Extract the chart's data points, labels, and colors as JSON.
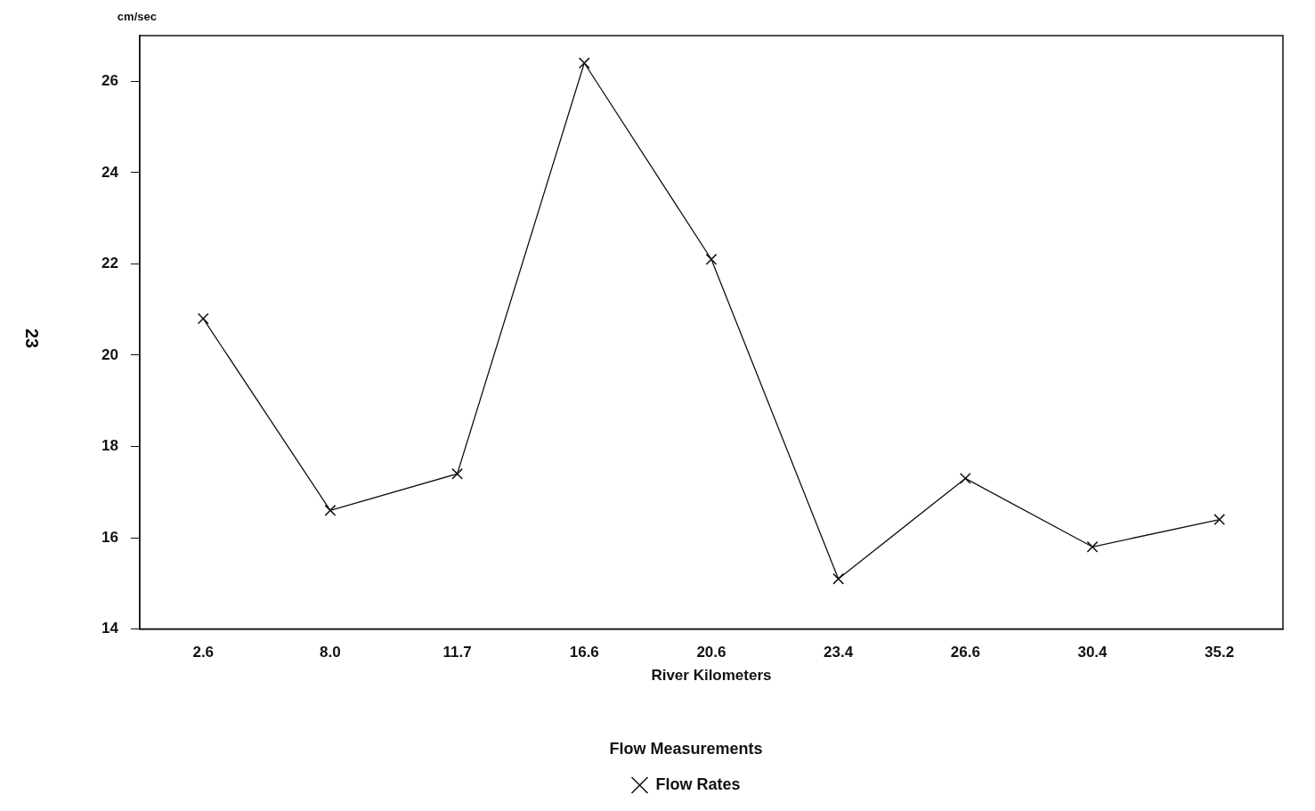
{
  "chart_data": {
    "type": "line",
    "ylabel": "cm/sec",
    "xlabel": "River Kilometers",
    "legend_title": "Flow Measurements",
    "categories": [
      "2.6",
      "8.0",
      "11.7",
      "16.6",
      "20.6",
      "23.4",
      "26.6",
      "30.4",
      "35.2"
    ],
    "series": [
      {
        "name": "Flow Rates",
        "color": "#111111",
        "values": [
          20.8,
          16.6,
          17.4,
          26.4,
          22.1,
          15.1,
          17.3,
          15.8,
          16.4
        ]
      }
    ],
    "ylim": [
      14,
      27
    ],
    "yticks": [
      14,
      16,
      18,
      20,
      22,
      24,
      26
    ],
    "grid": false,
    "legend": "bottom",
    "marker": "cross",
    "line_style": "solid",
    "annotations": [
      "23"
    ]
  }
}
